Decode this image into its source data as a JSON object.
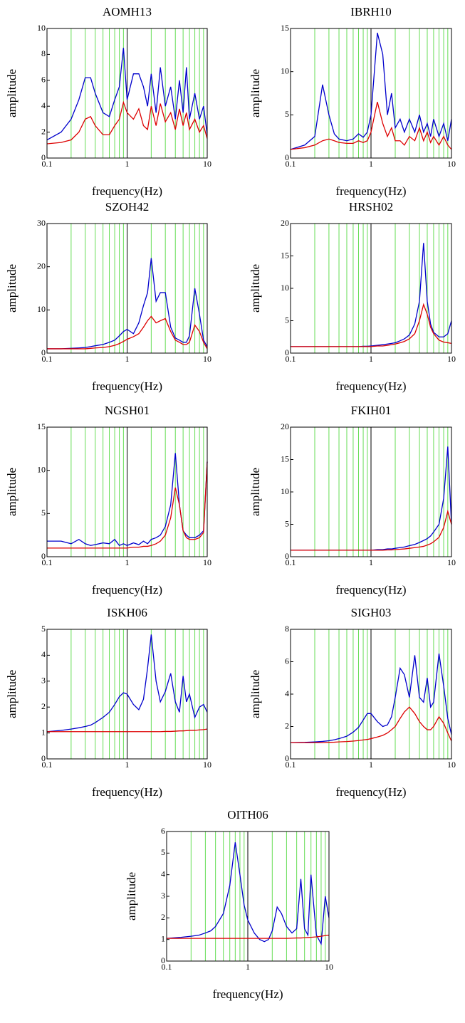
{
  "chart_data": [
    {
      "type": "line",
      "title": "AOMH13",
      "xlabel": "frequency(Hz)",
      "ylabel": "amplitude",
      "xscale": "log",
      "grid": true,
      "grid_color": "#66dd55",
      "x": [
        0.1,
        0.15,
        0.2,
        0.25,
        0.3,
        0.35,
        0.4,
        0.5,
        0.6,
        0.7,
        0.8,
        0.9,
        1,
        1.2,
        1.4,
        1.6,
        1.8,
        2,
        2.3,
        2.6,
        3,
        3.5,
        4,
        4.5,
        5,
        5.5,
        6,
        7,
        8,
        9,
        10
      ],
      "series": [
        {
          "color": "#0000cc",
          "values": [
            1.4,
            2.0,
            3.0,
            4.5,
            6.2,
            6.2,
            5.0,
            3.5,
            3.2,
            4.5,
            5.5,
            8.5,
            4.5,
            6.5,
            6.5,
            5.5,
            4.0,
            6.5,
            3.5,
            7.0,
            4.0,
            5.5,
            3.0,
            6.0,
            3.5,
            7.0,
            3.0,
            5.0,
            3.0,
            4.0,
            1.8
          ]
        },
        {
          "color": "#dd0000",
          "values": [
            1.1,
            1.2,
            1.4,
            2.0,
            3.0,
            3.2,
            2.5,
            1.8,
            1.8,
            2.5,
            3.0,
            4.3,
            3.5,
            3.0,
            3.8,
            2.5,
            2.2,
            4.0,
            2.5,
            4.2,
            2.8,
            3.5,
            2.2,
            3.8,
            2.5,
            3.5,
            2.2,
            3.0,
            2.0,
            2.5,
            1.5
          ]
        }
      ],
      "xlim": [
        0.1,
        10
      ],
      "xticks": [
        0.1,
        1,
        10
      ],
      "ylim": [
        0,
        10
      ],
      "yticks": [
        0,
        2,
        4,
        6,
        8,
        10
      ]
    },
    {
      "type": "line",
      "title": "IBRH10",
      "xlabel": "frequency(Hz)",
      "ylabel": "amplitude",
      "xscale": "log",
      "grid": true,
      "grid_color": "#66dd55",
      "x": [
        0.1,
        0.15,
        0.2,
        0.25,
        0.3,
        0.35,
        0.4,
        0.5,
        0.6,
        0.7,
        0.8,
        0.9,
        1,
        1.2,
        1.4,
        1.6,
        1.8,
        2,
        2.3,
        2.6,
        3,
        3.5,
        4,
        4.5,
        5,
        5.5,
        6,
        7,
        8,
        9,
        10
      ],
      "series": [
        {
          "color": "#0000cc",
          "values": [
            1,
            1.5,
            2.5,
            8.5,
            5,
            2.8,
            2.2,
            2.0,
            2.2,
            2.8,
            2.4,
            3,
            5,
            14.5,
            12,
            5,
            7.5,
            3.5,
            4.5,
            3,
            4.5,
            3,
            5,
            3,
            4,
            2.5,
            4.5,
            2.5,
            4,
            2,
            4.5
          ]
        },
        {
          "color": "#dd0000",
          "values": [
            1,
            1.2,
            1.5,
            2,
            2.2,
            2,
            1.8,
            1.7,
            1.7,
            2,
            1.8,
            2,
            3,
            6.5,
            4,
            2.5,
            3.5,
            2,
            2,
            1.5,
            2.5,
            2,
            3.5,
            2,
            3,
            1.8,
            2.5,
            1.5,
            2.5,
            1.5,
            1
          ]
        }
      ],
      "xlim": [
        0.1,
        10
      ],
      "xticks": [
        0.1,
        1,
        10
      ],
      "ylim": [
        0,
        15
      ],
      "yticks": [
        0,
        5,
        10,
        15
      ]
    },
    {
      "type": "line",
      "title": "SZOH42",
      "xlabel": "frequency(Hz)",
      "ylabel": "amplitude",
      "xscale": "log",
      "grid": true,
      "grid_color": "#66dd55",
      "x": [
        0.1,
        0.15,
        0.2,
        0.25,
        0.3,
        0.35,
        0.4,
        0.5,
        0.6,
        0.7,
        0.8,
        0.9,
        1,
        1.2,
        1.4,
        1.6,
        1.8,
        2,
        2.3,
        2.6,
        3,
        3.5,
        4,
        4.5,
        5,
        5.5,
        6,
        7,
        8,
        9,
        10
      ],
      "series": [
        {
          "color": "#0000cc",
          "values": [
            1,
            1,
            1.1,
            1.2,
            1.3,
            1.5,
            1.7,
            2,
            2.5,
            3,
            4,
            5,
            5.5,
            4.5,
            7,
            11,
            14,
            22,
            12,
            14,
            14,
            6,
            3.5,
            3,
            2.5,
            2.5,
            4,
            15,
            9,
            3,
            1.5
          ]
        },
        {
          "color": "#dd0000",
          "values": [
            1,
            1,
            1,
            1,
            1,
            1.1,
            1.2,
            1.3,
            1.5,
            1.8,
            2.2,
            2.7,
            3.2,
            3.8,
            4.5,
            6,
            7.5,
            8.5,
            7,
            7.5,
            8,
            5,
            3,
            2.5,
            2,
            2,
            2.5,
            6.5,
            5,
            2.5,
            1
          ]
        }
      ],
      "xlim": [
        0.1,
        10
      ],
      "xticks": [
        0.1,
        1,
        10
      ],
      "ylim": [
        0,
        30
      ],
      "yticks": [
        0,
        10,
        20,
        30
      ]
    },
    {
      "type": "line",
      "title": "HRSH02",
      "xlabel": "frequency(Hz)",
      "ylabel": "amplitude",
      "xscale": "log",
      "grid": true,
      "grid_color": "#66dd55",
      "x": [
        0.1,
        0.15,
        0.2,
        0.25,
        0.3,
        0.35,
        0.4,
        0.5,
        0.6,
        0.7,
        0.8,
        0.9,
        1,
        1.2,
        1.4,
        1.6,
        1.8,
        2,
        2.3,
        2.6,
        3,
        3.5,
        4,
        4.5,
        5,
        5.5,
        6,
        7,
        8,
        9,
        10
      ],
      "series": [
        {
          "color": "#0000cc",
          "values": [
            1,
            1,
            1,
            1,
            1,
            1,
            1,
            1,
            1,
            1,
            1.05,
            1.05,
            1.1,
            1.2,
            1.3,
            1.4,
            1.5,
            1.6,
            1.9,
            2.2,
            2.8,
            4.5,
            8,
            17,
            8,
            4.5,
            3.2,
            2.5,
            2.5,
            3,
            5
          ]
        },
        {
          "color": "#dd0000",
          "values": [
            1,
            1,
            1,
            1,
            1,
            1,
            1,
            1,
            1,
            1,
            1,
            1,
            1,
            1.1,
            1.1,
            1.2,
            1.3,
            1.4,
            1.6,
            1.8,
            2.2,
            3,
            5,
            7.5,
            6,
            4,
            3,
            2,
            1.7,
            1.6,
            1.5
          ]
        }
      ],
      "xlim": [
        0.1,
        10
      ],
      "xticks": [
        0.1,
        1,
        10
      ],
      "ylim": [
        0,
        20
      ],
      "yticks": [
        0,
        5,
        10,
        15,
        20
      ]
    },
    {
      "type": "line",
      "title": "NGSH01",
      "xlabel": "frequency(Hz)",
      "ylabel": "amplitude",
      "xscale": "log",
      "grid": true,
      "grid_color": "#66dd55",
      "x": [
        0.1,
        0.15,
        0.2,
        0.25,
        0.3,
        0.35,
        0.4,
        0.5,
        0.6,
        0.7,
        0.8,
        0.9,
        1,
        1.2,
        1.4,
        1.6,
        1.8,
        2,
        2.3,
        2.6,
        3,
        3.5,
        4,
        4.5,
        5,
        5.5,
        6,
        7,
        8,
        9,
        10
      ],
      "series": [
        {
          "color": "#0000cc",
          "values": [
            1.8,
            1.8,
            1.5,
            2,
            1.5,
            1.3,
            1.4,
            1.6,
            1.5,
            2,
            1.3,
            1.5,
            1.3,
            1.6,
            1.4,
            1.8,
            1.5,
            2,
            2.2,
            2.5,
            3.5,
            6,
            12,
            6,
            3,
            2.5,
            2.2,
            2.2,
            2.5,
            3,
            11
          ]
        },
        {
          "color": "#dd0000",
          "values": [
            1,
            1,
            1,
            1,
            1,
            1,
            1,
            1,
            1,
            1,
            1,
            1,
            1,
            1.1,
            1.1,
            1.2,
            1.2,
            1.3,
            1.5,
            1.8,
            2.5,
            4.5,
            8,
            6,
            3,
            2.2,
            2,
            2,
            2.2,
            2.8,
            11
          ]
        }
      ],
      "xlim": [
        0.1,
        10
      ],
      "xticks": [
        0.1,
        1,
        10
      ],
      "ylim": [
        0,
        15
      ],
      "yticks": [
        0,
        5,
        10,
        15
      ]
    },
    {
      "type": "line",
      "title": "FKIH01",
      "xlabel": "frequency(Hz)",
      "ylabel": "amplitude",
      "xscale": "log",
      "grid": true,
      "grid_color": "#66dd55",
      "x": [
        0.1,
        0.15,
        0.2,
        0.25,
        0.3,
        0.35,
        0.4,
        0.5,
        0.6,
        0.7,
        0.8,
        0.9,
        1,
        1.2,
        1.4,
        1.6,
        1.8,
        2,
        2.3,
        2.6,
        3,
        3.5,
        4,
        4.5,
        5,
        5.5,
        6,
        7,
        8,
        9,
        10
      ],
      "series": [
        {
          "color": "#0000cc",
          "values": [
            1,
            1,
            1,
            1,
            1,
            1,
            1,
            1,
            1,
            1,
            1,
            1,
            1,
            1.1,
            1.1,
            1.2,
            1.2,
            1.3,
            1.4,
            1.5,
            1.7,
            1.9,
            2.2,
            2.5,
            2.8,
            3.2,
            3.8,
            5,
            9,
            17,
            5
          ]
        },
        {
          "color": "#dd0000",
          "values": [
            1,
            1,
            1,
            1,
            1,
            1,
            1,
            1,
            1,
            1,
            1,
            1,
            1,
            1,
            1,
            1.05,
            1.05,
            1.1,
            1.15,
            1.2,
            1.3,
            1.4,
            1.5,
            1.6,
            1.8,
            2,
            2.3,
            3,
            4.5,
            7,
            5
          ]
        }
      ],
      "xlim": [
        0.1,
        10
      ],
      "xticks": [
        0.1,
        1,
        10
      ],
      "ylim": [
        0,
        20
      ],
      "yticks": [
        0,
        5,
        10,
        15,
        20
      ]
    },
    {
      "type": "line",
      "title": "ISKH06",
      "xlabel": "frequency(Hz)",
      "ylabel": "amplitude",
      "xscale": "log",
      "grid": true,
      "grid_color": "#66dd55",
      "x": [
        0.1,
        0.15,
        0.2,
        0.25,
        0.3,
        0.35,
        0.4,
        0.5,
        0.6,
        0.7,
        0.8,
        0.9,
        1,
        1.2,
        1.4,
        1.6,
        1.8,
        2,
        2.3,
        2.6,
        3,
        3.5,
        4,
        4.5,
        5,
        5.5,
        6,
        7,
        8,
        9,
        10
      ],
      "series": [
        {
          "color": "#0000cc",
          "values": [
            1.05,
            1.1,
            1.15,
            1.2,
            1.25,
            1.3,
            1.4,
            1.6,
            1.8,
            2.1,
            2.4,
            2.55,
            2.5,
            2.1,
            1.9,
            2.3,
            3.5,
            4.8,
            3,
            2.2,
            2.6,
            3.3,
            2.2,
            1.8,
            3.2,
            2.2,
            2.5,
            1.6,
            2,
            2.1,
            1.8
          ]
        },
        {
          "color": "#dd0000",
          "values": [
            1.05,
            1.05,
            1.05,
            1.05,
            1.05,
            1.05,
            1.05,
            1.05,
            1.05,
            1.05,
            1.05,
            1.05,
            1.05,
            1.05,
            1.05,
            1.05,
            1.05,
            1.05,
            1.05,
            1.05,
            1.06,
            1.06,
            1.07,
            1.08,
            1.08,
            1.09,
            1.1,
            1.1,
            1.12,
            1.13,
            1.15
          ]
        }
      ],
      "xlim": [
        0.1,
        10
      ],
      "xticks": [
        0.1,
        1,
        10
      ],
      "ylim": [
        0,
        5
      ],
      "yticks": [
        0,
        1,
        2,
        3,
        4,
        5
      ]
    },
    {
      "type": "line",
      "title": "SIGH03",
      "xlabel": "frequency(Hz)",
      "ylabel": "amplitude",
      "xscale": "log",
      "grid": true,
      "grid_color": "#66dd55",
      "x": [
        0.1,
        0.15,
        0.2,
        0.25,
        0.3,
        0.35,
        0.4,
        0.5,
        0.6,
        0.7,
        0.8,
        0.9,
        1,
        1.2,
        1.4,
        1.6,
        1.8,
        2,
        2.3,
        2.6,
        3,
        3.5,
        4,
        4.5,
        5,
        5.5,
        6,
        7,
        8,
        9,
        10
      ],
      "series": [
        {
          "color": "#0000cc",
          "values": [
            1,
            1.02,
            1.05,
            1.08,
            1.12,
            1.18,
            1.25,
            1.4,
            1.65,
            1.95,
            2.4,
            2.8,
            2.8,
            2.3,
            2.0,
            2.1,
            2.6,
            3.8,
            5.6,
            5.2,
            3.8,
            6.4,
            3.8,
            3.5,
            5,
            3.2,
            3.5,
            6.5,
            4.5,
            2.5,
            1.5
          ]
        },
        {
          "color": "#dd0000",
          "values": [
            1,
            1,
            1,
            1,
            1.02,
            1.03,
            1.05,
            1.07,
            1.1,
            1.13,
            1.17,
            1.2,
            1.25,
            1.35,
            1.45,
            1.6,
            1.8,
            2,
            2.5,
            2.9,
            3.2,
            2.8,
            2.3,
            2,
            1.8,
            1.8,
            2,
            2.6,
            2.2,
            1.6,
            1.1
          ]
        }
      ],
      "xlim": [
        0.1,
        10
      ],
      "xticks": [
        0.1,
        1,
        10
      ],
      "ylim": [
        0,
        8
      ],
      "yticks": [
        0,
        2,
        4,
        6,
        8
      ]
    },
    {
      "type": "line",
      "title": "OITH06",
      "xlabel": "frequency(Hz)",
      "ylabel": "amplitude",
      "xscale": "log",
      "grid": true,
      "grid_color": "#66dd55",
      "x": [
        0.1,
        0.15,
        0.2,
        0.25,
        0.3,
        0.35,
        0.4,
        0.5,
        0.6,
        0.7,
        0.8,
        0.9,
        1,
        1.2,
        1.4,
        1.6,
        1.8,
        2,
        2.3,
        2.6,
        3,
        3.5,
        4,
        4.5,
        5,
        5.5,
        6,
        7,
        8,
        9,
        10
      ],
      "series": [
        {
          "color": "#0000cc",
          "values": [
            1.05,
            1.1,
            1.15,
            1.2,
            1.3,
            1.4,
            1.6,
            2.2,
            3.5,
            5.5,
            4.0,
            2.6,
            1.9,
            1.3,
            1.0,
            0.9,
            1.0,
            1.4,
            2.5,
            2.2,
            1.6,
            1.3,
            1.5,
            3.8,
            1.5,
            1.2,
            4,
            1.2,
            0.8,
            3,
            2
          ]
        },
        {
          "color": "#dd0000",
          "values": [
            1.05,
            1.05,
            1.05,
            1.05,
            1.05,
            1.05,
            1.05,
            1.05,
            1.05,
            1.05,
            1.05,
            1.05,
            1.05,
            1.05,
            1.05,
            1.05,
            1.05,
            1.05,
            1.05,
            1.05,
            1.05,
            1.06,
            1.07,
            1.07,
            1.08,
            1.09,
            1.1,
            1.12,
            1.15,
            1.18,
            1.2
          ]
        }
      ],
      "xlim": [
        0.1,
        10
      ],
      "xticks": [
        0.1,
        1,
        10
      ],
      "ylim": [
        0,
        6
      ],
      "yticks": [
        0,
        1,
        2,
        3,
        4,
        5,
        6
      ]
    }
  ]
}
